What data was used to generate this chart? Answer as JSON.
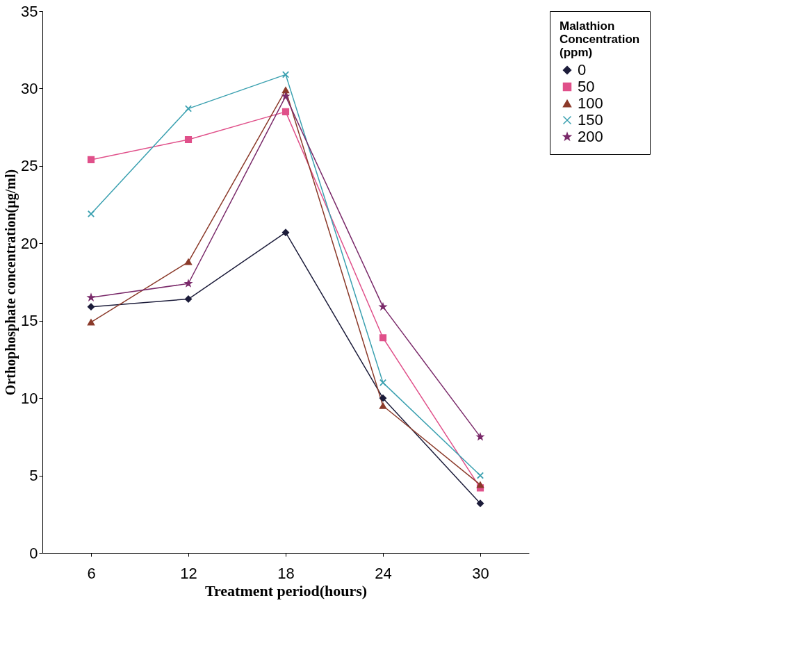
{
  "chart_data": {
    "type": "line",
    "xlabel": "Treatment period(hours)",
    "ylabel": "Orthophosphate concentration(µg/ml)",
    "legend_title": "Malathion Concentration (ppm)",
    "categories": [
      "6",
      "12",
      "18",
      "24",
      "30"
    ],
    "series": [
      {
        "name": "0",
        "color": "#1c1c3a",
        "marker": "diamond",
        "values": [
          15.9,
          16.4,
          20.7,
          10.0,
          3.2
        ]
      },
      {
        "name": "50",
        "color": "#e0508a",
        "marker": "square",
        "values": [
          25.4,
          26.7,
          28.5,
          13.9,
          4.2
        ]
      },
      {
        "name": "100",
        "color": "#8b3a2a",
        "marker": "triangle",
        "values": [
          14.9,
          18.8,
          29.9,
          9.5,
          4.4
        ]
      },
      {
        "name": "150",
        "color": "#3aa0b0",
        "marker": "cross",
        "values": [
          21.9,
          28.7,
          30.9,
          11.0,
          5.0
        ]
      },
      {
        "name": "200",
        "color": "#7a2a6a",
        "marker": "star",
        "values": [
          16.5,
          17.4,
          29.5,
          15.9,
          7.5
        ]
      }
    ],
    "ylim": [
      0,
      35
    ],
    "yticks": [
      0,
      5,
      10,
      15,
      20,
      25,
      30,
      35
    ],
    "grid": false,
    "legend": "right",
    "line_style": "solid"
  }
}
